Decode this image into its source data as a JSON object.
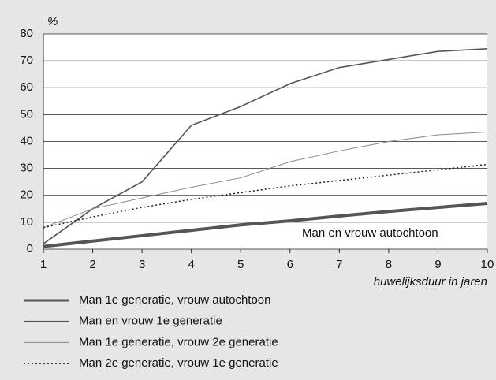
{
  "chart_data": {
    "type": "line",
    "y_unit_label": "%",
    "x_label": "huwelijksduur in jaren",
    "annotation": "Man en vrouw autochtoon",
    "x": [
      1,
      2,
      3,
      4,
      5,
      6,
      7,
      8,
      9,
      10
    ],
    "xlim": [
      1,
      10
    ],
    "xticks": [
      1,
      2,
      3,
      4,
      5,
      6,
      7,
      8,
      9,
      10
    ],
    "ylim": [
      0,
      80
    ],
    "yticks": [
      0,
      10,
      20,
      30,
      40,
      50,
      60,
      70,
      80
    ],
    "grid": true,
    "series": [
      {
        "name": "Man 1e generatie, vrouw autochtoon",
        "color": "#555555",
        "width": 4,
        "dash": "none",
        "values": [
          1,
          3,
          5,
          7,
          9,
          10.5,
          12.3,
          14,
          15.5,
          17
        ]
      },
      {
        "name": "Man en vrouw 1e generatie",
        "color": "#555555",
        "width": 1.6,
        "dash": "none",
        "values": [
          2,
          15,
          25,
          46,
          53,
          61.5,
          67.5,
          70.5,
          73.5,
          74.5
        ]
      },
      {
        "name": "Man 1e generatie, vrouw 2e generatie",
        "color": "#8a8a8a",
        "width": 1,
        "dash": "none",
        "values": [
          8,
          15,
          19,
          23,
          26.5,
          32.5,
          36.5,
          40,
          42.5,
          43.5
        ]
      },
      {
        "name": "Man 2e generatie, vrouw 1e generatie",
        "color": "#222222",
        "width": 1.5,
        "dash": "2,3",
        "values": [
          8,
          12,
          15.5,
          18.5,
          21,
          23.5,
          25.5,
          27.5,
          29.5,
          31.5
        ]
      }
    ]
  }
}
